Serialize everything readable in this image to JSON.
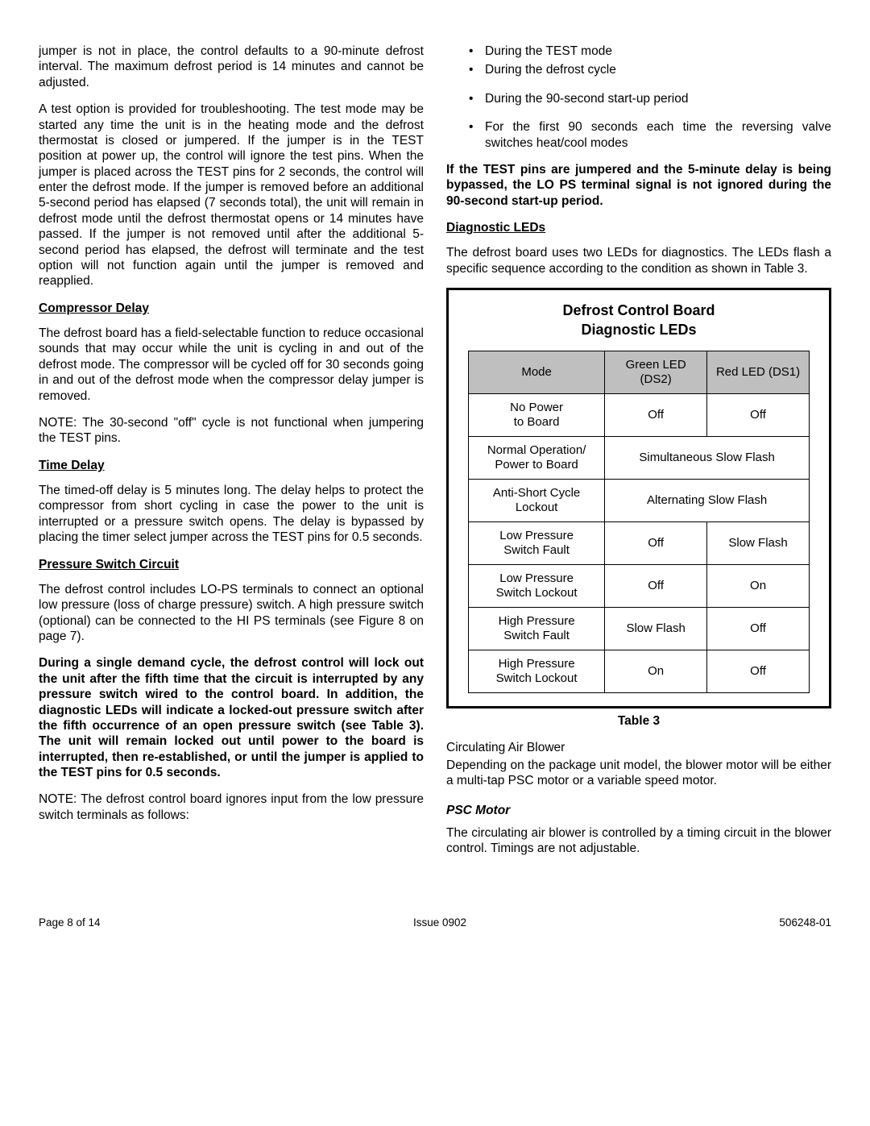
{
  "left": {
    "p1": "jumper is not in place, the control defaults to a 90-minute defrost interval. The maximum defrost period is 14 minutes and cannot be adjusted.",
    "p2": "A test option is provided for troubleshooting. The test mode may be started any time the unit is in the heating mode and the defrost thermostat is closed or jumpered. If the jumper is in the TEST position at power up, the control will ignore the test pins. When the jumper is placed across the TEST pins for 2 seconds, the control will enter the defrost mode. If the jumper is removed before an additional 5-second period has elapsed (7 seconds total), the unit will remain in defrost mode until the defrost thermostat opens or 14 minutes have passed. If the jumper is not removed until after the additional 5-second period has elapsed, the defrost will terminate and the test option will not function again until the jumper is removed and reapplied.",
    "h1": "Compressor Delay",
    "p3": "The defrost board has a field-selectable function to reduce occasional sounds that may occur while the unit is cycling in and out of the defrost mode. The compressor will be cycled off for 30 seconds going in and out of the defrost mode when the compressor delay jumper is removed.",
    "p4": "NOTE: The 30-second \"off\" cycle is not functional when jumpering the TEST pins.",
    "h2": "Time Delay",
    "p5": "The timed-off delay is 5 minutes long. The delay helps to protect the compressor from short cycling in case the power to the unit is interrupted or a pressure switch opens. The delay is bypassed by placing the timer select jumper across the TEST pins for 0.5 seconds.",
    "h3": "Pressure Switch Circuit",
    "p6": "The defrost control includes LO-PS terminals to connect an optional low pressure (loss of charge pressure) switch. A high pressure switch (optional) can be connected to the HI PS terminals (see Figure 8 on page 7).",
    "p7": "During a single demand cycle, the defrost control will lock out the unit after the fifth time that the circuit is interrupted by any pressure switch wired to the control board. In addition, the diagnostic LEDs will indicate a locked-out pressure switch after the fifth occurrence of an open pressure switch (see Table 3). The unit will remain locked out until power to the board is interrupted, then re-established, or until the jumper is applied to the TEST pins for 0.5 seconds.",
    "p8": "NOTE: The defrost control board ignores input from the low pressure switch terminals as follows:"
  },
  "right": {
    "bullets": [
      "During the TEST mode",
      "During the defrost cycle",
      "During the 90-second start-up period",
      "For the first 90 seconds each time the reversing valve switches heat/cool modes"
    ],
    "bold1": "If the TEST pins are jumpered and the 5-minute delay is being bypassed, the LO PS terminal signal is not ignored during the 90-second start-up period.",
    "h1": "Diagnostic LEDs",
    "p1": "The defrost board uses two LEDs for diagnostics. The LEDs flash a specific sequence according to the condition as shown in Table 3.",
    "table": {
      "title_l1": "Defrost Control Board",
      "title_l2": "Diagnostic LEDs",
      "head": [
        "Mode",
        "Green LED (DS2)",
        "Red LED (DS1)"
      ],
      "rows": [
        {
          "mode": "No Power\nto Board",
          "g": "Off",
          "r": "Off",
          "merge": false
        },
        {
          "mode": "Normal Operation/\nPower to Board",
          "merged": "Simultaneous Slow Flash",
          "merge": true
        },
        {
          "mode": "Anti-Short Cycle\nLockout",
          "merged": "Alternating Slow Flash",
          "merge": true
        },
        {
          "mode": "Low Pressure\nSwitch Fault",
          "g": "Off",
          "r": "Slow Flash",
          "merge": false
        },
        {
          "mode": "Low Pressure\nSwitch Lockout",
          "g": "Off",
          "r": "On",
          "merge": false
        },
        {
          "mode": "High Pressure\nSwitch Fault",
          "g": "Slow Flash",
          "r": "Off",
          "merge": false
        },
        {
          "mode": "High Pressure\nSwitch Lockout",
          "g": "On",
          "r": "Off",
          "merge": false
        }
      ],
      "caption": "Table 3"
    },
    "p2_t": "Circulating Air Blower",
    "p2": "Depending on the package unit model, the blower motor will be either a multi-tap PSC motor or a variable speed motor.",
    "h2": "PSC Motor",
    "p3": "The circulating air blower is controlled by a timing circuit in the blower control. Timings are not adjustable."
  },
  "footer": {
    "left": "Page 8 of 14",
    "center": "Issue 0902",
    "right": "506248-01"
  }
}
